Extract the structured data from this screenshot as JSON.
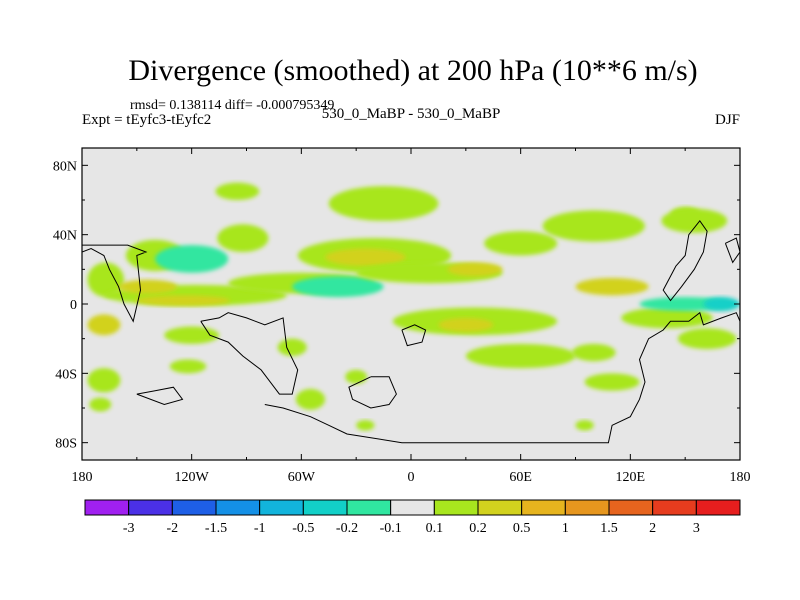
{
  "chart_data": {
    "type": "heatmap",
    "title": "Divergence (smoothed) at 200 hPa (10**6 m/s)",
    "stats": "rmsd= 0.138114 diff= -0.000795349",
    "left_label": "Expt = tEyfc3-tEyfc2",
    "center_label": "530_0_MaBP - 530_0_MaBP",
    "right_label": "DJF",
    "projection": "cylindrical-equidistant",
    "xlim": [
      -180,
      180
    ],
    "ylim": [
      -90,
      90
    ],
    "x_ticks": [
      {
        "value": -180,
        "label": "180"
      },
      {
        "value": -120,
        "label": "120W"
      },
      {
        "value": -60,
        "label": "60W"
      },
      {
        "value": 0,
        "label": "0"
      },
      {
        "value": 60,
        "label": "60E"
      },
      {
        "value": 120,
        "label": "120E"
      },
      {
        "value": 180,
        "label": "180"
      }
    ],
    "y_ticks": [
      {
        "value": 80,
        "label": "80N"
      },
      {
        "value": 40,
        "label": "40N"
      },
      {
        "value": 0,
        "label": "0"
      },
      {
        "value": -40,
        "label": "40S"
      },
      {
        "value": -80,
        "label": "80S"
      }
    ],
    "background_color": "#e6e6e6",
    "colorbar": {
      "levels": [
        "-3",
        "-2",
        "-1.5",
        "-1",
        "-0.5",
        "-0.2",
        "-0.1",
        "0.1",
        "0.2",
        "0.5",
        "1",
        "1.5",
        "2",
        "3"
      ],
      "colors": [
        "#a020f0",
        "#4b30e6",
        "#1e5fe6",
        "#1490e6",
        "#12b4dc",
        "#12d0c8",
        "#30e6a0",
        "#e6e6e6",
        "#a8e61e",
        "#d2d21e",
        "#e6b41e",
        "#e6961e",
        "#e6641e",
        "#e63c1e",
        "#e61e1e"
      ]
    },
    "anomaly_regions": [
      {
        "lon": -167,
        "lat": 14,
        "rx": 10,
        "ry": 10,
        "value": 0.15
      },
      {
        "lon": -168,
        "lat": -12,
        "rx": 9,
        "ry": 6,
        "value": 0.3
      },
      {
        "lon": -168,
        "lat": -44,
        "rx": 9,
        "ry": 7,
        "value": 0.15
      },
      {
        "lon": -170,
        "lat": -58,
        "rx": 6,
        "ry": 4,
        "value": 0.15
      },
      {
        "lon": -140,
        "lat": 28,
        "rx": 16,
        "ry": 9,
        "value": 0.15
      },
      {
        "lon": -120,
        "lat": 26,
        "rx": 20,
        "ry": 8,
        "value": -0.15
      },
      {
        "lon": -92,
        "lat": 38,
        "rx": 14,
        "ry": 8,
        "value": 0.15
      },
      {
        "lon": -118,
        "lat": 5,
        "rx": 50,
        "ry": 6,
        "value": 0.15
      },
      {
        "lon": -125,
        "lat": 2,
        "rx": 26,
        "ry": 3,
        "value": 0.35
      },
      {
        "lon": -144,
        "lat": 10,
        "rx": 16,
        "ry": 4,
        "value": 0.3
      },
      {
        "lon": -60,
        "lat": 12,
        "rx": 40,
        "ry": 6,
        "value": 0.15
      },
      {
        "lon": -40,
        "lat": 10,
        "rx": 25,
        "ry": 6,
        "value": -0.15
      },
      {
        "lon": -120,
        "lat": -18,
        "rx": 15,
        "ry": 5,
        "value": 0.15
      },
      {
        "lon": -122,
        "lat": -36,
        "rx": 10,
        "ry": 4,
        "value": 0.15
      },
      {
        "lon": -65,
        "lat": -25,
        "rx": 8,
        "ry": 5,
        "value": 0.15
      },
      {
        "lon": -55,
        "lat": -55,
        "rx": 8,
        "ry": 6,
        "value": 0.15
      },
      {
        "lon": -30,
        "lat": -42,
        "rx": 6,
        "ry": 4,
        "value": 0.15
      },
      {
        "lon": -15,
        "lat": 58,
        "rx": 30,
        "ry": 10,
        "value": 0.15
      },
      {
        "lon": -20,
        "lat": 28,
        "rx": 42,
        "ry": 10,
        "value": 0.15
      },
      {
        "lon": -25,
        "lat": 27,
        "rx": 22,
        "ry": 5,
        "value": 0.35
      },
      {
        "lon": 10,
        "lat": 18,
        "rx": 40,
        "ry": 6,
        "value": 0.15
      },
      {
        "lon": 35,
        "lat": 20,
        "rx": 15,
        "ry": 4,
        "value": 0.3
      },
      {
        "lon": -95,
        "lat": 65,
        "rx": 12,
        "ry": 5,
        "value": 0.15
      },
      {
        "lon": 60,
        "lat": 35,
        "rx": 20,
        "ry": 7,
        "value": 0.15
      },
      {
        "lon": 100,
        "lat": 45,
        "rx": 28,
        "ry": 9,
        "value": 0.15
      },
      {
        "lon": 150,
        "lat": 52,
        "rx": 8,
        "ry": 4,
        "value": 0.15
      },
      {
        "lon": 155,
        "lat": 48,
        "rx": 18,
        "ry": 7,
        "value": 0.15
      },
      {
        "lon": 35,
        "lat": -10,
        "rx": 45,
        "ry": 8,
        "value": 0.15
      },
      {
        "lon": 30,
        "lat": -12,
        "rx": 15,
        "ry": 4,
        "value": 0.35
      },
      {
        "lon": 60,
        "lat": -30,
        "rx": 30,
        "ry": 7,
        "value": 0.15
      },
      {
        "lon": 100,
        "lat": -28,
        "rx": 12,
        "ry": 5,
        "value": 0.15
      },
      {
        "lon": 110,
        "lat": -45,
        "rx": 15,
        "ry": 5,
        "value": 0.15
      },
      {
        "lon": 140,
        "lat": -8,
        "rx": 25,
        "ry": 6,
        "value": 0.15
      },
      {
        "lon": 162,
        "lat": -20,
        "rx": 16,
        "ry": 6,
        "value": 0.15
      },
      {
        "lon": 150,
        "lat": 0,
        "rx": 25,
        "ry": 4,
        "value": -0.15
      },
      {
        "lon": 170,
        "lat": 0,
        "rx": 10,
        "ry": 4,
        "value": -0.5
      },
      {
        "lon": 110,
        "lat": 10,
        "rx": 20,
        "ry": 5,
        "value": 0.35
      },
      {
        "lon": 95,
        "lat": -70,
        "rx": 5,
        "ry": 3,
        "value": 0.15
      },
      {
        "lon": -25,
        "lat": -70,
        "rx": 5,
        "ry": 3,
        "value": 0.15
      }
    ],
    "coastlines": [
      [
        [
          -180,
          30
        ],
        [
          -175,
          32
        ],
        [
          -168,
          28
        ],
        [
          -165,
          20
        ],
        [
          -160,
          10
        ],
        [
          -157,
          0
        ],
        [
          -152,
          -10
        ],
        [
          -148,
          8
        ],
        [
          -150,
          28
        ],
        [
          -145,
          30
        ],
        [
          -155,
          34
        ],
        [
          -165,
          34
        ],
        [
          -180,
          34
        ]
      ],
      [
        [
          -115,
          -10
        ],
        [
          -105,
          -8
        ],
        [
          -100,
          -5
        ],
        [
          -90,
          -8
        ],
        [
          -80,
          -12
        ],
        [
          -70,
          -8
        ],
        [
          -68,
          -25
        ],
        [
          -62,
          -38
        ],
        [
          -65,
          -52
        ],
        [
          -72,
          -52
        ],
        [
          -82,
          -38
        ],
        [
          -92,
          -30
        ],
        [
          -100,
          -22
        ],
        [
          -110,
          -18
        ],
        [
          -115,
          -10
        ]
      ],
      [
        [
          -80,
          -58
        ],
        [
          -70,
          -60
        ],
        [
          -55,
          -65
        ],
        [
          -45,
          -70
        ],
        [
          -35,
          -75
        ],
        [
          -5,
          -80
        ],
        [
          65,
          -80
        ],
        [
          108,
          -80
        ],
        [
          110,
          -70
        ],
        [
          120,
          -65
        ],
        [
          125,
          -55
        ],
        [
          128,
          -45
        ],
        [
          125,
          -32
        ],
        [
          130,
          -20
        ],
        [
          138,
          -15
        ],
        [
          142,
          -10
        ],
        [
          152,
          -10
        ],
        [
          158,
          -5
        ],
        [
          160,
          -12
        ],
        [
          170,
          -8
        ],
        [
          178,
          -5
        ],
        [
          180,
          -10
        ]
      ],
      [
        [
          -22,
          -42
        ],
        [
          -12,
          -42
        ],
        [
          -8,
          -52
        ],
        [
          -12,
          -58
        ],
        [
          -22,
          -60
        ],
        [
          -32,
          -55
        ],
        [
          -34,
          -48
        ],
        [
          -22,
          -42
        ]
      ],
      [
        [
          -5,
          -15
        ],
        [
          2,
          -12
        ],
        [
          8,
          -15
        ],
        [
          6,
          -22
        ],
        [
          -2,
          -24
        ],
        [
          -5,
          -15
        ]
      ],
      [
        [
          145,
          22
        ],
        [
          150,
          28
        ],
        [
          152,
          40
        ],
        [
          158,
          48
        ],
        [
          162,
          42
        ],
        [
          160,
          30
        ],
        [
          155,
          20
        ],
        [
          148,
          10
        ],
        [
          142,
          2
        ],
        [
          138,
          8
        ],
        [
          145,
          22
        ]
      ],
      [
        [
          172,
          35
        ],
        [
          178,
          38
        ],
        [
          180,
          30
        ],
        [
          176,
          24
        ],
        [
          172,
          35
        ]
      ],
      [
        [
          -150,
          -52
        ],
        [
          -140,
          -50
        ],
        [
          -130,
          -48
        ],
        [
          -125,
          -55
        ],
        [
          -135,
          -58
        ],
        [
          -150,
          -52
        ]
      ]
    ]
  }
}
